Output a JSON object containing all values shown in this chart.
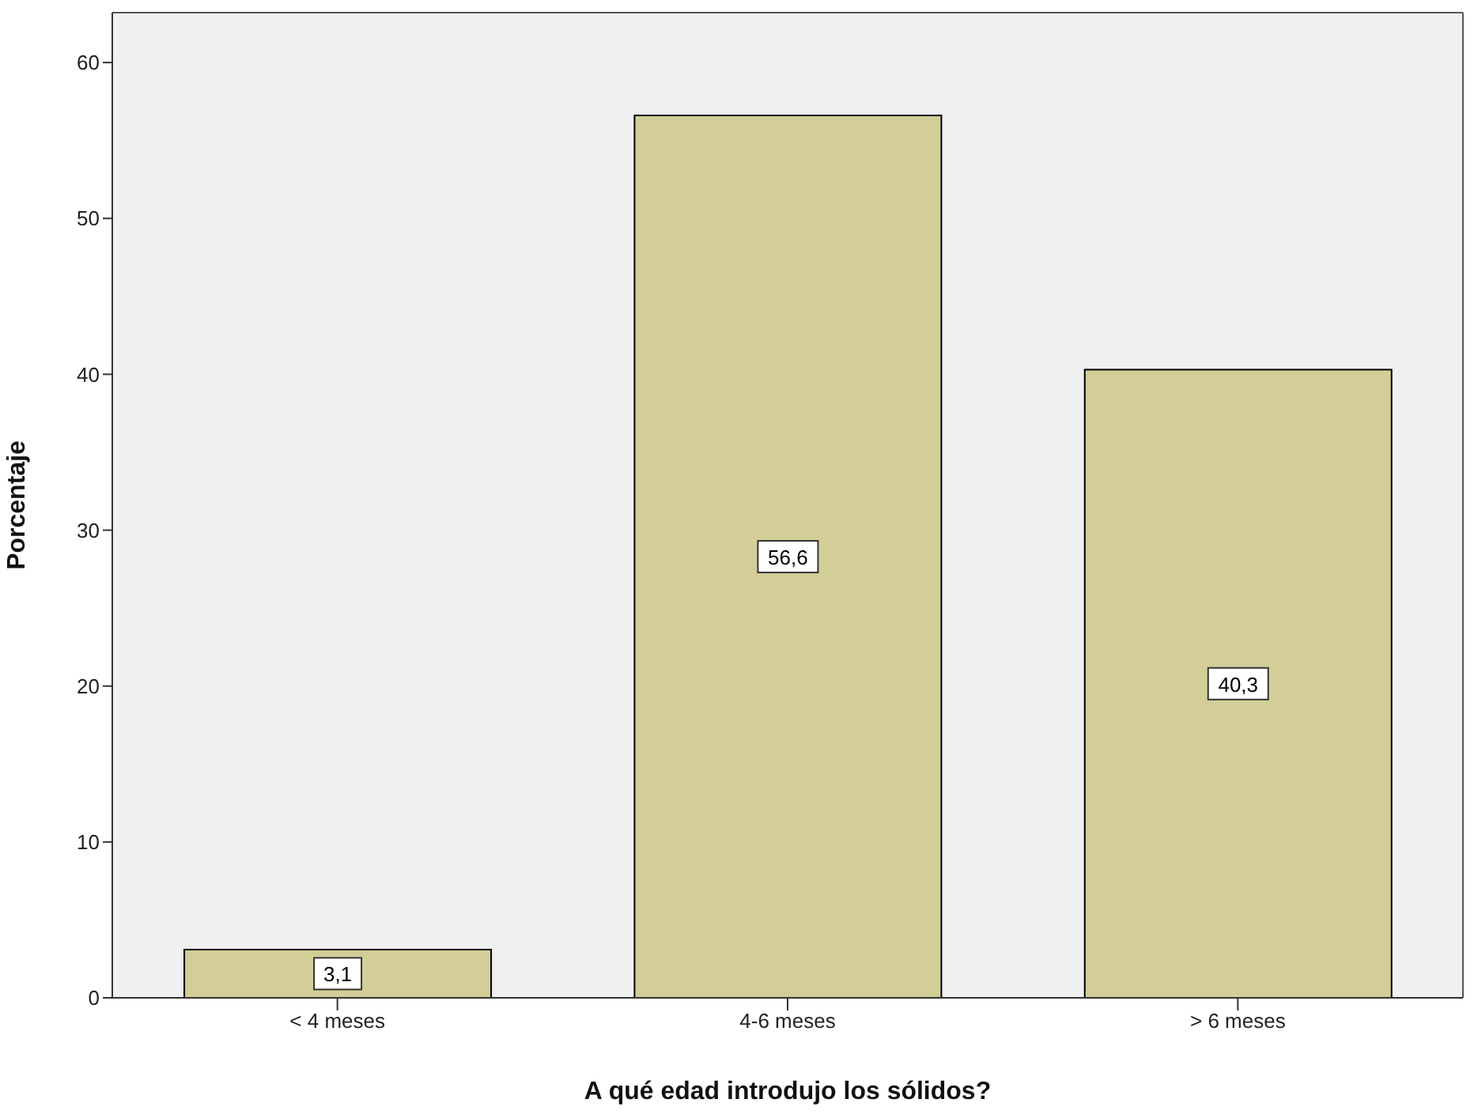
{
  "chart_data": {
    "type": "bar",
    "xlabel": "A qué edad introdujo los sólidos?",
    "ylabel": "Porcentaje",
    "categories": [
      "< 4 meses",
      "4-6 meses",
      "> 6 meses"
    ],
    "values": [
      3.1,
      56.6,
      40.3
    ],
    "value_labels": [
      "3,1",
      "56,6",
      "40,3"
    ],
    "color": "#d3ce98",
    "ylim": [
      0,
      63.2
    ],
    "yticks": [
      0,
      10,
      20,
      30,
      40,
      50,
      60
    ],
    "grid": false,
    "legend": false
  }
}
